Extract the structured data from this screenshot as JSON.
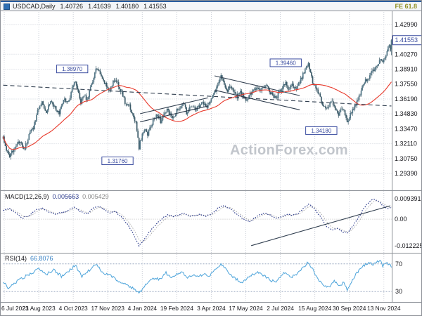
{
  "titlebar": {
    "symbol": "USDCAD,Daily",
    "open": "1.40726",
    "high": "1.41639",
    "low": "1.40180",
    "close": "1.41553",
    "fib_label": "FE 61.8"
  },
  "watermark": "ActionForex.com",
  "colors": {
    "candle": "#3b5a68",
    "candle_up": "#527687",
    "ma": "#e8392b",
    "macd": "#2b3a8c",
    "signal": "#a9a9a9",
    "rsi": "#4ba3da",
    "rsi_level": "#9aa8c0",
    "marker": "#3b4da0",
    "grid": "#cdd1d9",
    "separator": "#8b8f96",
    "trendline": "#2f3d4e",
    "axis_text": "#15151a"
  },
  "chart_data": {
    "type": "candlestick",
    "symbol": "USDCAD",
    "timeframe": "Daily",
    "total_days": 360,
    "ohlc_current": {
      "open": 1.40726,
      "high": 1.41639,
      "low": 1.4018,
      "close": 1.41553
    },
    "x_ticks": {
      "days": [
        1,
        33,
        65,
        97,
        129,
        161,
        193,
        225,
        257,
        289,
        321,
        353
      ],
      "labels": [
        "6 Jul 2023",
        "21 Aug 2023",
        "4 Oct 2023",
        "17 Nov 2023",
        "4 Jan 2024",
        "19 Feb 2024",
        "3 Apr 2024",
        "17 May 2024",
        "2 Jul 2024",
        "15 Aug 2024",
        "30 Sep 2024",
        "13 Nov 2024"
      ]
    },
    "price_axis": {
      "ticks": [
        "1.42990",
        "1.40270",
        "1.38910",
        "1.37550",
        "1.36190",
        "1.34830",
        "1.33470",
        "1.32110",
        "1.30750",
        "1.29390"
      ],
      "current": "1.41553",
      "range": [
        1.2786,
        1.4413
      ]
    },
    "price_anchors": [
      [
        0,
        1.327
      ],
      [
        3,
        1.3155
      ],
      [
        6,
        1.308
      ],
      [
        10,
        1.318
      ],
      [
        15,
        1.322
      ],
      [
        20,
        1.3165
      ],
      [
        24,
        1.329
      ],
      [
        28,
        1.336
      ],
      [
        33,
        1.3545
      ],
      [
        36,
        1.359
      ],
      [
        40,
        1.351
      ],
      [
        44,
        1.3605
      ],
      [
        48,
        1.3545
      ],
      [
        52,
        1.348
      ],
      [
        56,
        1.362
      ],
      [
        60,
        1.358
      ],
      [
        63,
        1.368
      ],
      [
        66,
        1.3785
      ],
      [
        69,
        1.372
      ],
      [
        72,
        1.359
      ],
      [
        75,
        1.365
      ],
      [
        78,
        1.362
      ],
      [
        81,
        1.371
      ],
      [
        84,
        1.382
      ],
      [
        86,
        1.3897
      ],
      [
        89,
        1.386
      ],
      [
        92,
        1.379
      ],
      [
        95,
        1.375
      ],
      [
        99,
        1.37
      ],
      [
        102,
        1.377
      ],
      [
        105,
        1.379
      ],
      [
        109,
        1.37
      ],
      [
        113,
        1.359
      ],
      [
        117,
        1.355
      ],
      [
        120,
        1.348
      ],
      [
        123,
        1.34
      ],
      [
        126,
        1.3177
      ],
      [
        128,
        1.326
      ],
      [
        131,
        1.335
      ],
      [
        134,
        1.33
      ],
      [
        137,
        1.337
      ],
      [
        140,
        1.344
      ],
      [
        143,
        1.3485
      ],
      [
        146,
        1.342
      ],
      [
        149,
        1.346
      ],
      [
        152,
        1.353
      ],
      [
        155,
        1.347
      ],
      [
        158,
        1.344
      ],
      [
        161,
        1.351
      ],
      [
        164,
        1.355
      ],
      [
        167,
        1.358
      ],
      [
        170,
        1.35
      ],
      [
        173,
        1.353
      ],
      [
        176,
        1.356
      ],
      [
        179,
        1.352
      ],
      [
        182,
        1.3555
      ],
      [
        185,
        1.359
      ],
      [
        188,
        1.354
      ],
      [
        191,
        1.358
      ],
      [
        194,
        1.365
      ],
      [
        197,
        1.369
      ],
      [
        200,
        1.379
      ],
      [
        202,
        1.3845
      ],
      [
        205,
        1.376
      ],
      [
        208,
        1.37
      ],
      [
        211,
        1.3745
      ],
      [
        214,
        1.369
      ],
      [
        217,
        1.363
      ],
      [
        220,
        1.368
      ],
      [
        223,
        1.364
      ],
      [
        226,
        1.361
      ],
      [
        229,
        1.366
      ],
      [
        232,
        1.37
      ],
      [
        235,
        1.373
      ],
      [
        238,
        1.368
      ],
      [
        241,
        1.372
      ],
      [
        244,
        1.376
      ],
      [
        247,
        1.37
      ],
      [
        250,
        1.365
      ],
      [
        253,
        1.362
      ],
      [
        256,
        1.368
      ],
      [
        259,
        1.372
      ],
      [
        262,
        1.376
      ],
      [
        265,
        1.37
      ],
      [
        268,
        1.374
      ],
      [
        271,
        1.37
      ],
      [
        274,
        1.375
      ],
      [
        277,
        1.382
      ],
      [
        280,
        1.388
      ],
      [
        283,
        1.3946
      ],
      [
        285,
        1.385
      ],
      [
        287,
        1.378
      ],
      [
        290,
        1.372
      ],
      [
        293,
        1.365
      ],
      [
        296,
        1.358
      ],
      [
        299,
        1.353
      ],
      [
        302,
        1.356
      ],
      [
        305,
        1.36
      ],
      [
        308,
        1.352
      ],
      [
        311,
        1.347
      ],
      [
        314,
        1.354
      ],
      [
        317,
        1.348
      ],
      [
        319,
        1.3418
      ],
      [
        321,
        1.346
      ],
      [
        324,
        1.352
      ],
      [
        327,
        1.356
      ],
      [
        330,
        1.364
      ],
      [
        333,
        1.372
      ],
      [
        336,
        1.378
      ],
      [
        339,
        1.382
      ],
      [
        342,
        1.386
      ],
      [
        345,
        1.39
      ],
      [
        348,
        1.394
      ],
      [
        350,
        1.398
      ],
      [
        352,
        1.395
      ],
      [
        354,
        1.399
      ],
      [
        356,
        1.406
      ],
      [
        358,
        1.411
      ],
      [
        359,
        1.407
      ],
      [
        360,
        1.41553
      ]
    ],
    "ma": {
      "type": "SMA",
      "period": 45
    },
    "markers": [
      {
        "text": "1.38970",
        "day": 64,
        "price": 1.3893
      },
      {
        "text": "1.39460",
        "day": 262,
        "price": 1.3949
      },
      {
        "text": "1.31760",
        "day": 106,
        "price": 1.3055
      },
      {
        "text": "1.34180",
        "day": 295,
        "price": 1.3331
      }
    ],
    "trendlines": [
      {
        "points": [
          [
            0,
            1.3745
          ],
          [
            360,
            1.3555
          ]
        ],
        "style": "dashed"
      },
      {
        "points": [
          [
            127,
            1.341
          ],
          [
            190,
            1.3555
          ]
        ],
        "style": "solid"
      },
      {
        "points": [
          [
            127,
            1.3485
          ],
          [
            190,
            1.363
          ]
        ],
        "style": "solid"
      },
      {
        "points": [
          [
            196,
            1.383
          ],
          [
            275,
            1.365
          ]
        ],
        "style": "solid"
      },
      {
        "points": [
          [
            196,
            1.37
          ],
          [
            275,
            1.352
          ]
        ],
        "style": "solid"
      }
    ],
    "macd": {
      "name": "MACD(12,26,9)",
      "value_main": "0.005663",
      "value_signal": "0.005429",
      "axis_ticks": [
        "0.009391",
        "0.00",
        "-0.012225"
      ],
      "range": [
        -0.0155,
        0.013
      ],
      "anchors": [
        [
          0,
          0.004
        ],
        [
          6,
          0.005
        ],
        [
          12,
          0.0028
        ],
        [
          18,
          0.0005
        ],
        [
          24,
          0.0018
        ],
        [
          30,
          0.0042
        ],
        [
          36,
          0.0052
        ],
        [
          42,
          0.0035
        ],
        [
          48,
          0.0022
        ],
        [
          54,
          0.003
        ],
        [
          60,
          0.004
        ],
        [
          66,
          0.0055
        ],
        [
          72,
          0.0035
        ],
        [
          78,
          0.0025
        ],
        [
          84,
          0.0052
        ],
        [
          88,
          0.006
        ],
        [
          93,
          0.0048
        ],
        [
          98,
          0.003
        ],
        [
          104,
          0.0035
        ],
        [
          110,
          0.001
        ],
        [
          116,
          -0.003
        ],
        [
          121,
          -0.007
        ],
        [
          126,
          -0.0122
        ],
        [
          130,
          -0.01
        ],
        [
          134,
          -0.007
        ],
        [
          138,
          -0.0045
        ],
        [
          143,
          -0.0018
        ],
        [
          148,
          0.0005
        ],
        [
          153,
          0.0022
        ],
        [
          158,
          0.0012
        ],
        [
          163,
          0.002
        ],
        [
          168,
          0.0028
        ],
        [
          173,
          0.0012
        ],
        [
          178,
          0.0018
        ],
        [
          183,
          0.0022
        ],
        [
          188,
          0.0014
        ],
        [
          193,
          0.0025
        ],
        [
          198,
          0.0045
        ],
        [
          203,
          0.0062
        ],
        [
          208,
          0.0055
        ],
        [
          213,
          0.004
        ],
        [
          218,
          0.0018
        ],
        [
          223,
          0.0
        ],
        [
          228,
          -0.0012
        ],
        [
          233,
          0.0006
        ],
        [
          238,
          0.002
        ],
        [
          243,
          0.0028
        ],
        [
          248,
          0.0018
        ],
        [
          253,
          0.0002
        ],
        [
          258,
          0.001
        ],
        [
          263,
          0.0022
        ],
        [
          268,
          0.0018
        ],
        [
          273,
          0.0025
        ],
        [
          278,
          0.0048
        ],
        [
          283,
          0.0068
        ],
        [
          286,
          0.006
        ],
        [
          290,
          0.004
        ],
        [
          295,
          0.0005
        ],
        [
          300,
          -0.0035
        ],
        [
          305,
          -0.0048
        ],
        [
          310,
          -0.004
        ],
        [
          315,
          -0.0058
        ],
        [
          319,
          -0.0063
        ],
        [
          323,
          -0.004
        ],
        [
          327,
          -0.0012
        ],
        [
          331,
          0.002
        ],
        [
          335,
          0.0055
        ],
        [
          339,
          0.0078
        ],
        [
          343,
          0.0094
        ],
        [
          347,
          0.0085
        ],
        [
          351,
          0.0068
        ],
        [
          354,
          0.0055
        ],
        [
          357,
          0.005
        ],
        [
          360,
          0.005663
        ]
      ],
      "trendline": {
        "points": [
          [
            230,
            -0.0122
          ],
          [
            359,
            0.0062
          ]
        ]
      }
    },
    "rsi": {
      "name": "RSI(14)",
      "value_text": "66.8076",
      "levels": [
        "70",
        "30"
      ],
      "range": [
        15,
        85
      ],
      "anchors": [
        [
          0,
          45
        ],
        [
          5,
          34
        ],
        [
          10,
          42
        ],
        [
          18,
          50
        ],
        [
          26,
          56
        ],
        [
          33,
          63
        ],
        [
          40,
          55
        ],
        [
          47,
          61
        ],
        [
          54,
          52
        ],
        [
          61,
          60
        ],
        [
          67,
          68
        ],
        [
          73,
          52
        ],
        [
          80,
          61
        ],
        [
          86,
          70
        ],
        [
          92,
          58
        ],
        [
          99,
          53
        ],
        [
          106,
          46
        ],
        [
          113,
          41
        ],
        [
          120,
          35
        ],
        [
          126,
          27
        ],
        [
          131,
          38
        ],
        [
          136,
          45
        ],
        [
          141,
          50
        ],
        [
          146,
          47
        ],
        [
          151,
          57
        ],
        [
          156,
          49
        ],
        [
          161,
          55
        ],
        [
          166,
          59
        ],
        [
          171,
          49
        ],
        [
          176,
          54
        ],
        [
          181,
          51
        ],
        [
          186,
          56
        ],
        [
          191,
          53
        ],
        [
          196,
          60
        ],
        [
          202,
          70
        ],
        [
          207,
          61
        ],
        [
          212,
          52
        ],
        [
          217,
          47
        ],
        [
          222,
          43
        ],
        [
          227,
          50
        ],
        [
          232,
          55
        ],
        [
          237,
          58
        ],
        [
          242,
          53
        ],
        [
          247,
          47
        ],
        [
          252,
          44
        ],
        [
          257,
          52
        ],
        [
          262,
          58
        ],
        [
          267,
          51
        ],
        [
          272,
          55
        ],
        [
          277,
          64
        ],
        [
          283,
          72
        ],
        [
          287,
          62
        ],
        [
          292,
          48
        ],
        [
          297,
          40
        ],
        [
          302,
          36
        ],
        [
          307,
          46
        ],
        [
          312,
          38
        ],
        [
          316,
          44
        ],
        [
          319,
          31
        ],
        [
          323,
          45
        ],
        [
          327,
          55
        ],
        [
          331,
          63
        ],
        [
          335,
          68
        ],
        [
          339,
          71
        ],
        [
          343,
          69
        ],
        [
          347,
          73
        ],
        [
          350,
          75
        ],
        [
          352,
          66
        ],
        [
          354,
          70
        ],
        [
          356,
          73
        ],
        [
          358,
          68
        ],
        [
          360,
          66.8
        ]
      ]
    }
  }
}
